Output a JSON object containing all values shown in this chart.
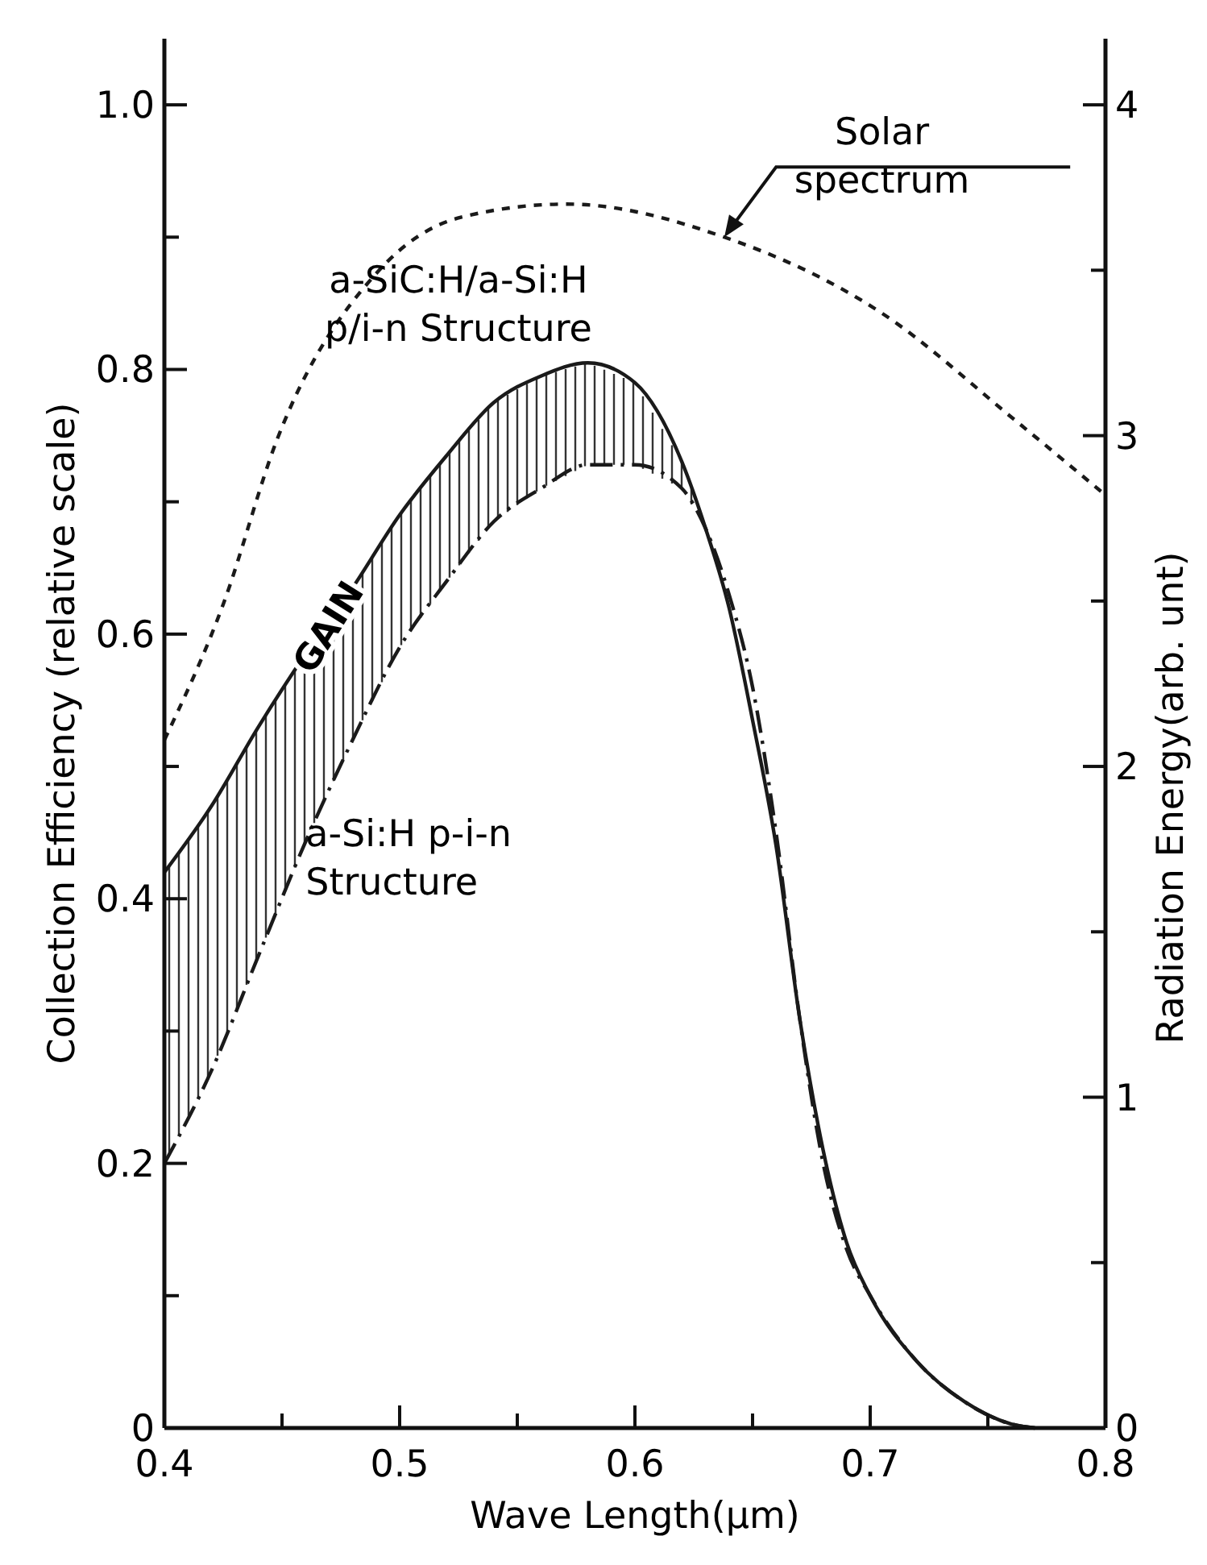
{
  "chart_data": {
    "type": "line",
    "xlabel": "Wave Length(μm)",
    "ylabel": "Collection Efficiency (relative scale)",
    "y2label": "Radiation Energy(arb. unt)",
    "xlim": [
      0.4,
      0.8
    ],
    "ylim": [
      0,
      1.05
    ],
    "y2lim": [
      0,
      4.2
    ],
    "xticks": [
      0.4,
      {
        "value": 0.45,
        "label": null
      },
      0.5,
      {
        "value": 0.55,
        "label": null
      },
      0.6,
      {
        "value": 0.65,
        "label": null
      },
      0.7,
      {
        "value": 0.75,
        "label": null
      },
      0.8
    ],
    "yticks": [
      0,
      {
        "value": 0.1,
        "label": null
      },
      0.2,
      {
        "value": 0.3,
        "label": null
      },
      0.4,
      {
        "value": 0.5,
        "label": null
      },
      0.6,
      {
        "value": 0.7,
        "label": null
      },
      0.8,
      {
        "value": 0.9,
        "label": null
      },
      {
        "value": 1,
        "label": "1.0"
      }
    ],
    "y2ticks": [
      0,
      {
        "value": 0.5,
        "label": null
      },
      1,
      {
        "value": 1.5,
        "label": null
      },
      2,
      {
        "value": 2.5,
        "label": null
      },
      3,
      {
        "value": 3.5,
        "label": null
      },
      4
    ],
    "grid": false,
    "marker": "none",
    "series": [
      {
        "name": "a-SiC:H/a-Si:H\np/i-n Structure",
        "color": "#1a1a1a",
        "line_style": "solid",
        "x": [
          0.4,
          0.42,
          0.44,
          0.46,
          0.48,
          0.5,
          0.52,
          0.54,
          0.56,
          0.58,
          0.6,
          0.62,
          0.63,
          0.64,
          0.65,
          0.66,
          0.67,
          0.68,
          0.69,
          0.7,
          0.72,
          0.74,
          0.76,
          0.77
        ],
        "values": [
          0.42,
          0.47,
          0.53,
          0.585,
          0.635,
          0.69,
          0.735,
          0.775,
          0.795,
          0.805,
          0.79,
          0.73,
          0.68,
          0.62,
          0.535,
          0.44,
          0.31,
          0.21,
          0.14,
          0.1,
          0.05,
          0.02,
          0.003,
          0
        ]
      },
      {
        "name": "a-Si:H p-i-n\nStructure",
        "color": "#1a1a1a",
        "line_style": "dashed",
        "x": [
          0.4,
          0.42,
          0.44,
          0.46,
          0.48,
          0.5,
          0.52,
          0.54,
          0.56,
          0.58,
          0.6,
          0.62,
          0.63,
          0.64,
          0.65,
          0.66,
          0.67,
          0.68,
          0.69,
          0.7,
          0.72,
          0.74,
          0.76,
          0.77
        ],
        "values": [
          0.2,
          0.27,
          0.357,
          0.443,
          0.52,
          0.59,
          0.64,
          0.685,
          0.71,
          0.728,
          0.728,
          0.71,
          0.68,
          0.63,
          0.56,
          0.45,
          0.31,
          0.2,
          0.135,
          0.1,
          0.05,
          0.02,
          0.003,
          0
        ]
      },
      {
        "name": "Solar\nspectrum",
        "color": "#1a1a1a",
        "line_style": "dotted",
        "axis": "y2",
        "x": [
          0.4,
          0.425,
          0.448,
          0.49,
          0.526,
          0.571,
          0.638,
          0.705,
          0.761,
          0.8
        ],
        "values": [
          2.08,
          2.49,
          2.99,
          3.49,
          3.66,
          3.7,
          3.6,
          3.37,
          3.05,
          2.82
        ]
      }
    ],
    "annotations": [
      {
        "text": "GAIN",
        "x": 0.474,
        "y": 0.62
      }
    ]
  }
}
